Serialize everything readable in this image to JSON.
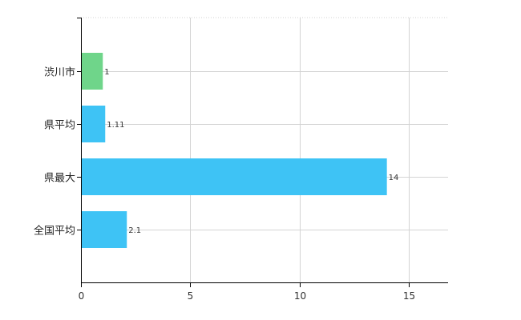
{
  "chart_data": {
    "type": "bar",
    "orientation": "horizontal",
    "categories": [
      "渋川市",
      "県平均",
      "県最大",
      "全国平均"
    ],
    "values": [
      1,
      1.11,
      14,
      2.1
    ],
    "data_labels": [
      "1",
      "1.11",
      "14",
      "2.1"
    ],
    "bar_colors": [
      "#6fd58a",
      "#3ec3f5",
      "#3ec3f5",
      "#3ec3f5"
    ],
    "xlim": [
      0,
      16.8
    ],
    "xticks": [
      0,
      5,
      10,
      15
    ],
    "xtick_labels": [
      "0",
      "5",
      "10",
      "15"
    ],
    "grid": true,
    "grid_color": "#d3d3d3",
    "axis_color": "#000000"
  }
}
